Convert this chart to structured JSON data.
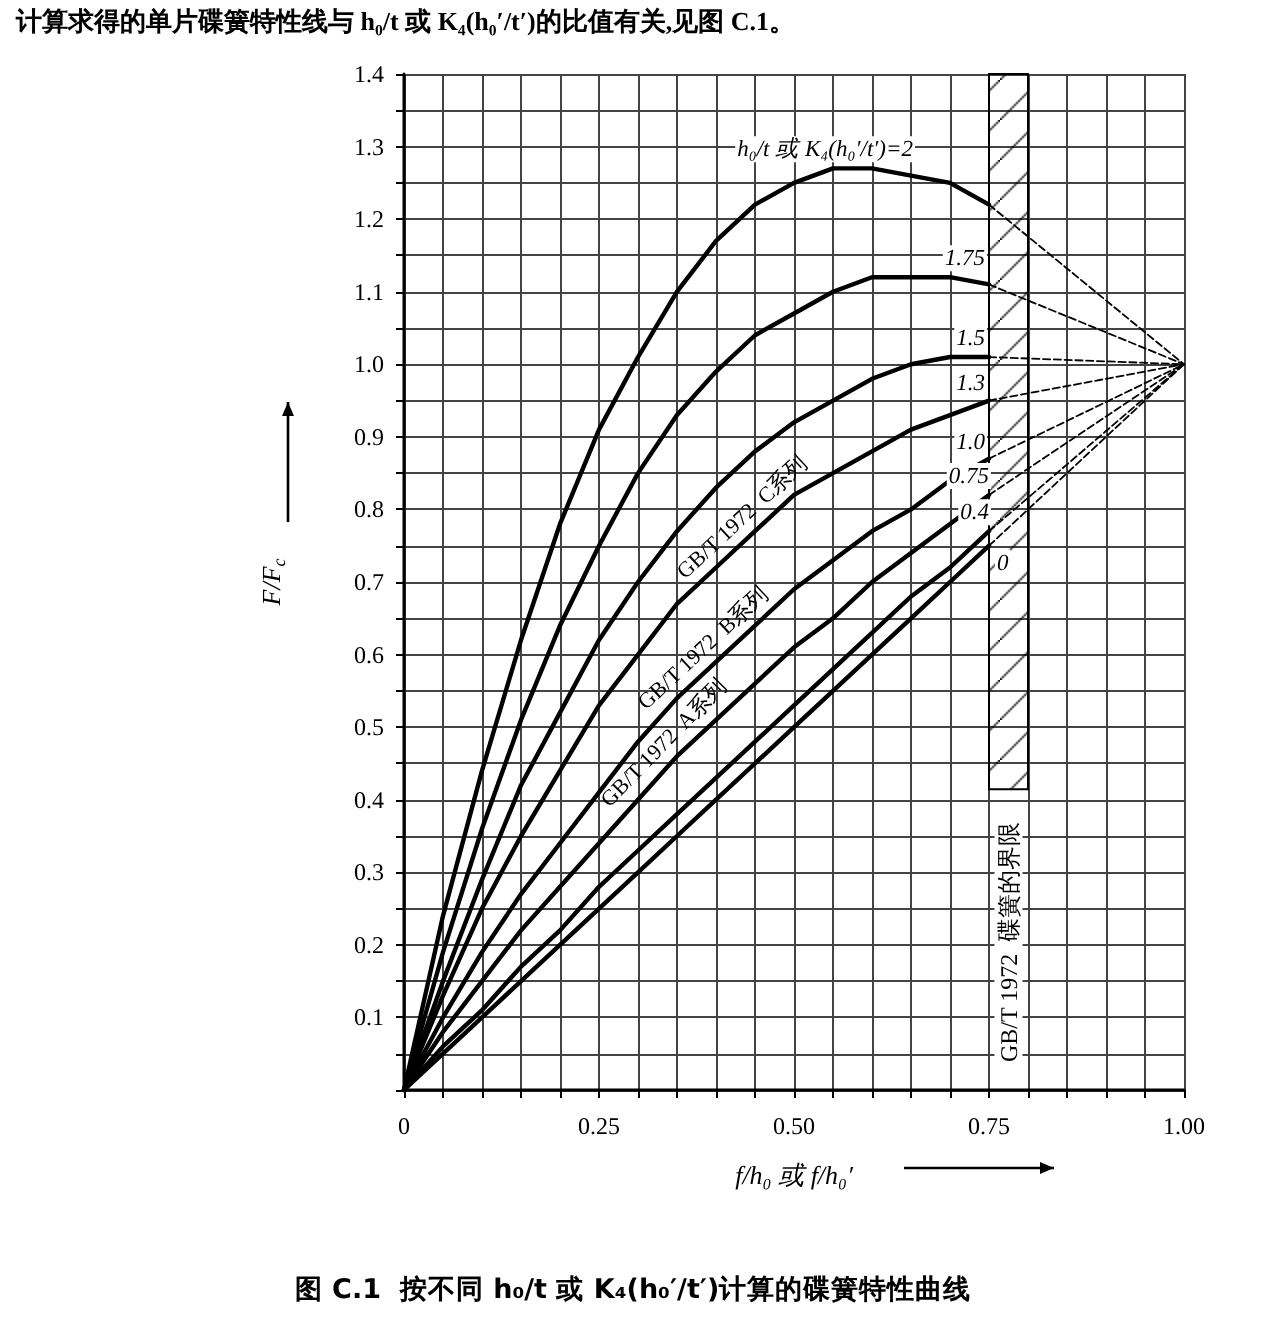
{
  "chart_data": {
    "type": "line",
    "title": "图 C.1  按不同 h₀/t 或 K₄(h₀′/t′)计算的碟簧特性曲线",
    "xlabel": "f/h₀ 或 f/h₀′",
    "ylabel": "F/F$_{c}$",
    "annotations": [
      "计算求得的单片碟簧特性线与 h₀/t 或 K₄(h₀′/t′)的比值有关,见图 C.1。",
      {
        "text": "GB/T 1972  C系列",
        "x": 0.45,
        "y": 0.77
      },
      {
        "text": "GB/T 1972  B系列",
        "x": 0.4,
        "y": 0.59
      },
      {
        "text": "GB/T 1972  A系列",
        "x": 0.35,
        "y": 0.46
      }
    ],
    "xlim": [
      0,
      1
    ],
    "ylim": [
      0,
      1.4
    ],
    "xticks": [
      0,
      {
        "value": 0.05,
        "label": null
      },
      {
        "value": 0.1,
        "label": null
      },
      {
        "value": 0.15,
        "label": null
      },
      {
        "value": 0.2,
        "label": null
      },
      0.25,
      {
        "value": 0.3,
        "label": null
      },
      {
        "value": 0.35,
        "label": null
      },
      {
        "value": 0.4,
        "label": null
      },
      {
        "value": 0.45,
        "label": null
      },
      {
        "value": 0.5,
        "label": "0.50"
      },
      {
        "value": 0.55,
        "label": null
      },
      {
        "value": 0.6,
        "label": null
      },
      {
        "value": 0.65,
        "label": null
      },
      {
        "value": 0.7,
        "label": null
      },
      0.75,
      {
        "value": 0.8,
        "label": null
      },
      {
        "value": 0.85,
        "label": null
      },
      {
        "value": 0.9,
        "label": null
      },
      {
        "value": 0.95,
        "label": null
      },
      {
        "value": 1,
        "label": "1.00"
      }
    ],
    "yticks": [
      {
        "value": 0,
        "label": null
      },
      {
        "value": 0.05,
        "label": null
      },
      0.1,
      {
        "value": 0.15,
        "label": null
      },
      0.2,
      {
        "value": 0.25,
        "label": null
      },
      0.3,
      {
        "value": 0.35,
        "label": null
      },
      0.4,
      {
        "value": 0.45,
        "label": null
      },
      0.5,
      {
        "value": 0.55,
        "label": null
      },
      0.6,
      {
        "value": 0.65,
        "label": null
      },
      0.7,
      {
        "value": 0.75,
        "label": null
      },
      0.8,
      {
        "value": 0.85,
        "label": null
      },
      0.9,
      {
        "value": 0.95,
        "label": null
      },
      {
        "value": 1,
        "label": "1.0"
      },
      {
        "value": 1.05,
        "label": null
      },
      1.1,
      {
        "value": 1.15,
        "label": null
      },
      1.2,
      {
        "value": 1.25,
        "label": null
      },
      1.3,
      {
        "value": 1.35,
        "label": null
      },
      1.4
    ],
    "grid": true,
    "marker": "none",
    "line_style": "solid",
    "bands": [
      {
        "axis": "x",
        "from": 0.75,
        "to": 0.8,
        "label": "GB/T 1972  碟簧的界限",
        "color": "#000000"
      }
    ],
    "series": [
      {
        "name": "h₀/t 或 K₄(h₀′/t′)=2",
        "color": "#000000",
        "x": [
          0,
          0.05,
          0.1,
          0.15,
          0.2,
          0.25,
          0.3,
          0.35,
          0.4,
          0.45,
          0.5,
          0.55,
          0.6,
          0.65,
          0.7,
          0.75
        ],
        "values": [
          0,
          0.24,
          0.44,
          0.62,
          0.78,
          0.91,
          1.01,
          1.1,
          1.17,
          1.22,
          1.25,
          1.27,
          1.27,
          1.26,
          1.25,
          1.22
        ]
      },
      {
        "name": "1.75",
        "color": "#000000",
        "x": [
          0,
          0.05,
          0.1,
          0.15,
          0.2,
          0.25,
          0.3,
          0.35,
          0.4,
          0.45,
          0.5,
          0.55,
          0.6,
          0.65,
          0.7,
          0.75
        ],
        "values": [
          0,
          0.19,
          0.36,
          0.51,
          0.64,
          0.75,
          0.85,
          0.93,
          0.99,
          1.04,
          1.07,
          1.1,
          1.12,
          1.12,
          1.12,
          1.11
        ]
      },
      {
        "name": "1.5",
        "color": "#000000",
        "x": [
          0,
          0.05,
          0.1,
          0.15,
          0.2,
          0.25,
          0.3,
          0.35,
          0.4,
          0.45,
          0.5,
          0.55,
          0.6,
          0.65,
          0.7,
          0.75
        ],
        "values": [
          0,
          0.15,
          0.29,
          0.42,
          0.52,
          0.62,
          0.7,
          0.77,
          0.83,
          0.88,
          0.92,
          0.95,
          0.98,
          1,
          1.01,
          1.01
        ]
      },
      {
        "name": "1.3",
        "color": "#000000",
        "x": [
          0,
          0.05,
          0.1,
          0.15,
          0.2,
          0.25,
          0.3,
          0.35,
          0.4,
          0.45,
          0.5,
          0.55,
          0.6,
          0.65,
          0.7,
          0.75
        ],
        "values": [
          0,
          0.13,
          0.25,
          0.35,
          0.44,
          0.53,
          0.6,
          0.67,
          0.72,
          0.77,
          0.82,
          0.85,
          0.88,
          0.91,
          0.93,
          0.95
        ]
      },
      {
        "name": "1.0",
        "color": "#000000",
        "x": [
          0,
          0.05,
          0.1,
          0.15,
          0.2,
          0.25,
          0.3,
          0.35,
          0.4,
          0.45,
          0.5,
          0.55,
          0.6,
          0.65,
          0.7,
          0.75
        ],
        "values": [
          0,
          0.1,
          0.19,
          0.27,
          0.34,
          0.41,
          0.48,
          0.54,
          0.59,
          0.64,
          0.69,
          0.73,
          0.77,
          0.8,
          0.84,
          0.87
        ]
      },
      {
        "name": "0.75",
        "color": "#000000",
        "x": [
          0,
          0.05,
          0.1,
          0.15,
          0.2,
          0.25,
          0.3,
          0.35,
          0.4,
          0.45,
          0.5,
          0.55,
          0.6,
          0.65,
          0.7,
          0.75
        ],
        "values": [
          0,
          0.08,
          0.15,
          0.22,
          0.28,
          0.34,
          0.4,
          0.46,
          0.51,
          0.56,
          0.61,
          0.65,
          0.7,
          0.74,
          0.78,
          0.82
        ]
      },
      {
        "name": "0.4",
        "color": "#000000",
        "x": [
          0,
          0.05,
          0.1,
          0.15,
          0.2,
          0.25,
          0.3,
          0.35,
          0.4,
          0.45,
          0.5,
          0.55,
          0.6,
          0.65,
          0.7,
          0.75
        ],
        "values": [
          0,
          0.06,
          0.11,
          0.17,
          0.22,
          0.28,
          0.33,
          0.38,
          0.43,
          0.48,
          0.53,
          0.58,
          0.63,
          0.68,
          0.72,
          0.77
        ]
      },
      {
        "name": "0",
        "color": "#000000",
        "x": [
          0,
          0.05,
          0.1,
          0.15,
          0.2,
          0.25,
          0.3,
          0.35,
          0.4,
          0.45,
          0.5,
          0.55,
          0.6,
          0.65,
          0.7,
          0.75
        ],
        "values": [
          0,
          0.05,
          0.1,
          0.15,
          0.2,
          0.25,
          0.3,
          0.35,
          0.4,
          0.45,
          0.5,
          0.55,
          0.6,
          0.65,
          0.7,
          0.75
        ]
      },
      {
        "color": "#000000",
        "line_style": "dashed",
        "x": [
          0.75,
          1
        ],
        "values": [
          1.22,
          1
        ]
      },
      {
        "color": "#000000",
        "line_style": "dashed",
        "x": [
          0.75,
          1
        ],
        "values": [
          1.11,
          1
        ]
      },
      {
        "color": "#000000",
        "line_style": "dashed",
        "x": [
          0.75,
          1
        ],
        "values": [
          1.01,
          1
        ]
      },
      {
        "color": "#000000",
        "line_style": "dashed",
        "x": [
          0.75,
          1
        ],
        "values": [
          0.95,
          1
        ]
      },
      {
        "color": "#000000",
        "line_style": "dashed",
        "x": [
          0.75,
          1
        ],
        "values": [
          0.87,
          1
        ]
      },
      {
        "color": "#000000",
        "line_style": "dashed",
        "x": [
          0.75,
          1
        ],
        "values": [
          0.82,
          1
        ]
      },
      {
        "color": "#000000",
        "line_style": "dashed",
        "x": [
          0.75,
          1
        ],
        "values": [
          0.77,
          1
        ]
      },
      {
        "color": "#000000",
        "line_style": "dashed",
        "x": [
          0.75,
          1
        ],
        "values": [
          0.75,
          1
        ]
      }
    ]
  }
}
